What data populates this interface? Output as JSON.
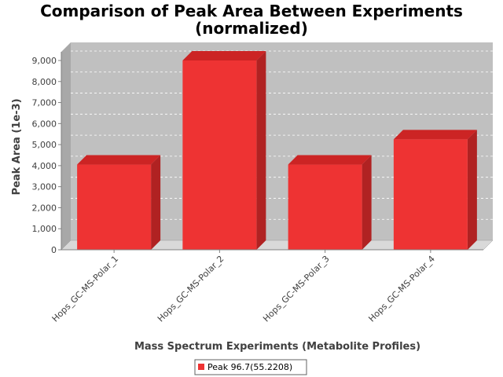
{
  "chart_data": {
    "type": "bar",
    "title_line1": "Comparison of Peak Area Between Experiments",
    "title_line2": "(normalized)",
    "xlabel": "Mass Spectrum Experiments (Metabolite Profiles)",
    "ylabel": "Peak Area (1e-3)",
    "categories": [
      "Hops_GC-MS-Polar_1",
      "Hops_GC-MS-Polar_2",
      "Hops_GC-MS-Polar_3",
      "Hops_GC-MS-Polar_4"
    ],
    "series": [
      {
        "name": "Peak 96.7(55.2208)",
        "values": [
          4050,
          9000,
          4050,
          5250
        ],
        "color": "#ee3333"
      }
    ],
    "ylim": [
      0,
      9000
    ],
    "yticks": [
      0,
      1000,
      2000,
      3000,
      4000,
      5000,
      6000,
      7000,
      8000,
      9000
    ],
    "ytick_labels": [
      "0",
      "1,000",
      "2,000",
      "3,000",
      "4,000",
      "5,000",
      "6,000",
      "7,000",
      "8,000",
      "9,000"
    ],
    "grid": true,
    "legend_position": "bottom",
    "colors": {
      "plot_background": "#c0c0c0",
      "floor": "#d9d9d9",
      "bar_front": "#ee3333",
      "bar_top": "#cc2424",
      "bar_side": "#b02222",
      "gridline": "#ffffff"
    }
  }
}
